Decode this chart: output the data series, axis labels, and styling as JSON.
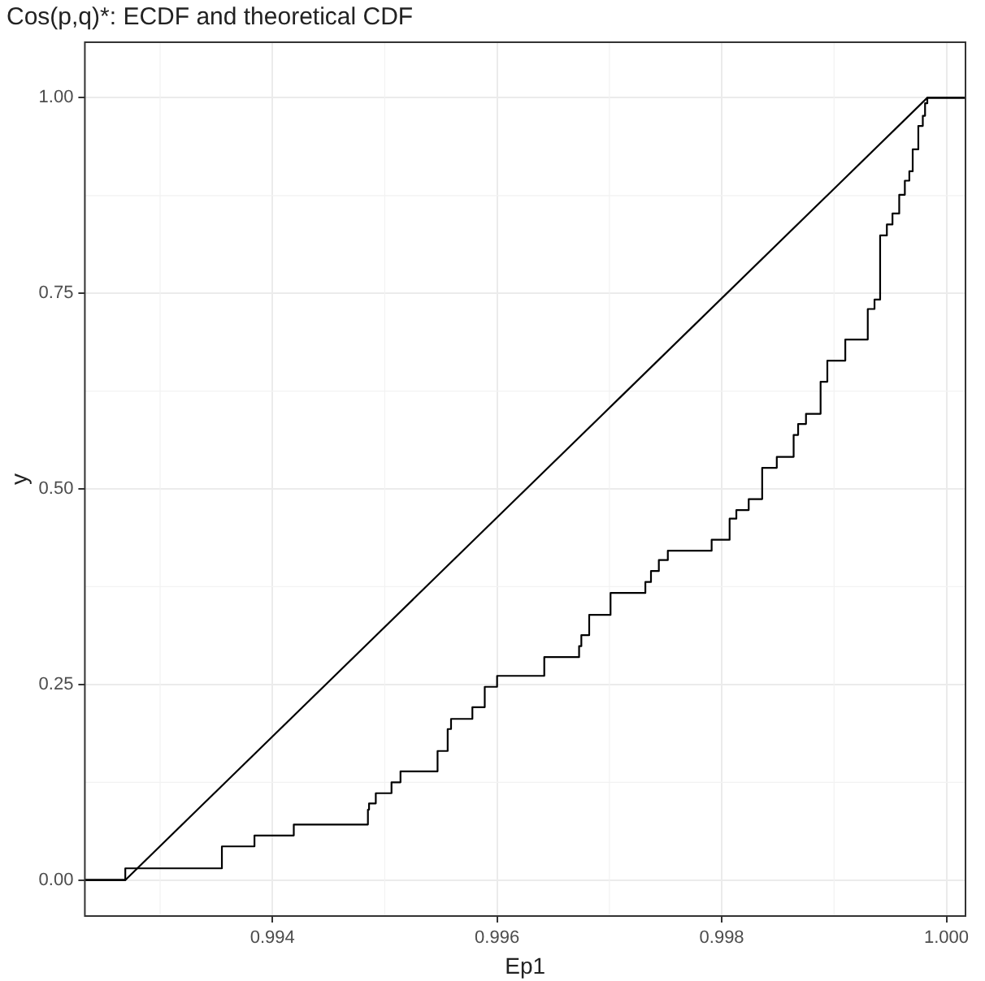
{
  "chart_data": {
    "type": "line",
    "title": "Cos(p,q)*: ECDF and theoretical CDF",
    "xlabel": "Ep1",
    "ylabel": "y",
    "xlim": [
      0.99233,
      1.00017
    ],
    "ylim": [
      -0.046,
      1.071
    ],
    "xticks": [
      0.994,
      0.996,
      0.998,
      {
        "value": 1,
        "label": "1.000"
      }
    ],
    "yticks": [
      {
        "value": 0,
        "label": "0.00"
      },
      {
        "value": 0.25,
        "label": "0.25"
      },
      {
        "value": 0.5,
        "label": "0.50"
      },
      {
        "value": 0.75,
        "label": "0.75"
      },
      {
        "value": 1,
        "label": "1.00"
      }
    ],
    "grid": true,
    "legend": false,
    "marker": "none",
    "series": [
      {
        "type": "step",
        "color": "#000000",
        "x": [
          0.99233,
          0.99269,
          0.99355,
          0.99384,
          0.99419,
          0.99485,
          0.99486,
          0.99492,
          0.99506,
          0.99514,
          0.99547,
          0.99556,
          0.99559,
          0.99578,
          0.99589,
          0.996,
          0.99642,
          0.99673,
          0.99675,
          0.99682,
          0.99701,
          0.99732,
          0.99737,
          0.99744,
          0.99752,
          0.99791,
          0.99807,
          0.99813,
          0.99824,
          0.99836,
          0.99849,
          0.99864,
          0.99868,
          0.99875,
          0.99888,
          0.99894,
          0.9991,
          0.9993,
          0.99936,
          0.99941,
          0.99947,
          0.99952,
          0.99958,
          0.99963,
          0.99967,
          0.9997,
          0.99975,
          0.99979,
          0.99981,
          0.99983,
          1.00017
        ],
        "values": [
          0,
          0.015,
          0.043,
          0.057,
          0.071,
          0.09,
          0.098,
          0.111,
          0.125,
          0.139,
          0.165,
          0.193,
          0.206,
          0.221,
          0.247,
          0.261,
          0.285,
          0.299,
          0.313,
          0.339,
          0.367,
          0.381,
          0.395,
          0.409,
          0.421,
          0.435,
          0.462,
          0.473,
          0.487,
          0.527,
          0.541,
          0.569,
          0.583,
          0.596,
          0.637,
          0.664,
          0.691,
          0.73,
          0.742,
          0.824,
          0.838,
          0.852,
          0.876,
          0.894,
          0.906,
          0.934,
          0.964,
          0.977,
          0.993,
          1,
          1
        ]
      },
      {
        "type": "line",
        "color": "#000000",
        "x": [
          0.99233,
          0.99269,
          0.99983,
          1.00017
        ],
        "values": [
          0,
          0,
          1,
          1
        ]
      }
    ]
  }
}
